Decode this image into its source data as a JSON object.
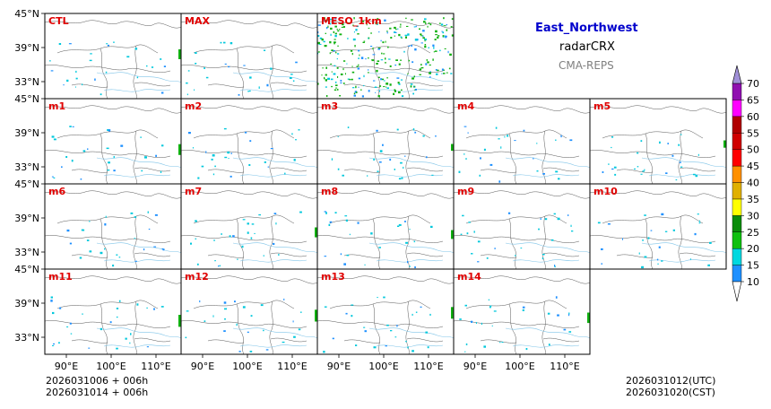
{
  "header": {
    "region": "East_Northwest",
    "product": "radarCRX",
    "model": "CMA-REPS"
  },
  "footer": {
    "init_line1": "2026031006  +  006h",
    "init_line2": "2026031014  +  006h",
    "valid_utc": "2026031012(UTC)",
    "valid_cst": "2026031020(CST)"
  },
  "axes": {
    "lat_ticks": [
      "45°N",
      "39°N",
      "33°N"
    ],
    "lon_ticks": [
      "90°E",
      "100°E",
      "110°E"
    ]
  },
  "panels": [
    [
      "CTL",
      "MAX",
      "MESO_1km"
    ],
    [
      "m1",
      "m2",
      "m3",
      "m4",
      "m5"
    ],
    [
      "m6",
      "m7",
      "m8",
      "m9",
      "m10"
    ],
    [
      "m11",
      "m12",
      "m13",
      "m14"
    ]
  ],
  "colorbar": {
    "levels": [
      "10",
      "15",
      "20",
      "25",
      "30",
      "35",
      "40",
      "45",
      "50",
      "55",
      "60",
      "65",
      "70"
    ],
    "colors": [
      "#1e90ff",
      "#00d8e0",
      "#10c010",
      "#0a8c0a",
      "#ffff00",
      "#e0b000",
      "#ff9000",
      "#ff0000",
      "#d00000",
      "#b00000",
      "#ff00ff",
      "#9010b0"
    ],
    "under_color": "#ffffff",
    "over_color": "#a090d8"
  },
  "colors": {
    "panel_label": "#e00000",
    "border": "#404040",
    "river": "#7fc4e8",
    "echo_weak": "#00c8dc",
    "echo_mid": "#1e90ff",
    "echo_strong": "#10b010"
  }
}
